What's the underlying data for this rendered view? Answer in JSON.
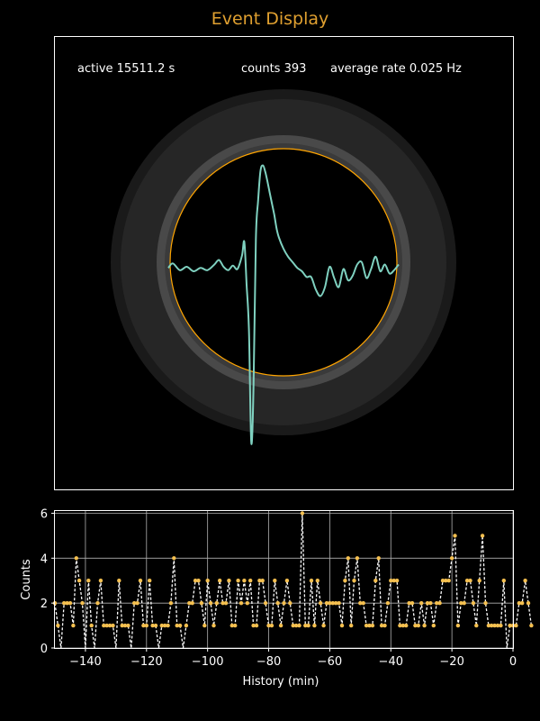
{
  "title": "Event Display",
  "stats": {
    "active": "active 15511.2 s",
    "counts": "counts 393",
    "rate": "average rate 0.025 Hz"
  },
  "colors": {
    "title": "#e0a030",
    "trace": "#7fd1c0",
    "ring": "#ffa500",
    "marker": "#f5c050",
    "line": "#ffffff"
  },
  "chart_data": [
    {
      "type": "line",
      "title": "",
      "description_role": "event waveform inside detector display",
      "xlim": [
        0,
        1
      ],
      "ylim": [
        -1,
        1
      ],
      "x": [
        0.0,
        0.02,
        0.05,
        0.08,
        0.11,
        0.14,
        0.17,
        0.2,
        0.22,
        0.24,
        0.26,
        0.28,
        0.3,
        0.32,
        0.33,
        0.34,
        0.35,
        0.36,
        0.37,
        0.38,
        0.39,
        0.4,
        0.41,
        0.42,
        0.43,
        0.44,
        0.45,
        0.46,
        0.47,
        0.48,
        0.5,
        0.52,
        0.54,
        0.56,
        0.58,
        0.6,
        0.62,
        0.64,
        0.66,
        0.68,
        0.7,
        0.72,
        0.74,
        0.76,
        0.78,
        0.8,
        0.82,
        0.84,
        0.86,
        0.88,
        0.9,
        0.92,
        0.94,
        0.96,
        0.98,
        1.0
      ],
      "y": [
        -0.05,
        -0.01,
        -0.07,
        -0.04,
        -0.08,
        -0.05,
        -0.07,
        -0.02,
        0.02,
        -0.04,
        -0.07,
        -0.03,
        -0.06,
        0.06,
        0.18,
        -0.2,
        -0.6,
        -1.6,
        -1.1,
        0.2,
        0.55,
        0.81,
        0.86,
        0.81,
        0.72,
        0.62,
        0.52,
        0.42,
        0.3,
        0.22,
        0.12,
        0.05,
        0.0,
        -0.05,
        -0.08,
        -0.13,
        -0.13,
        -0.24,
        -0.3,
        -0.22,
        -0.04,
        -0.14,
        -0.22,
        -0.06,
        -0.16,
        -0.12,
        -0.02,
        0.0,
        -0.14,
        -0.06,
        0.05,
        -0.08,
        -0.02,
        -0.1,
        -0.07,
        -0.02
      ]
    },
    {
      "type": "line",
      "title": "",
      "xlabel": "History (min)",
      "ylabel": "Counts",
      "xlim": [
        -150,
        0
      ],
      "ylim": [
        0,
        6.1
      ],
      "xticks": [
        -140,
        -120,
        -100,
        -80,
        -60,
        -40,
        -20,
        0
      ],
      "yticks": [
        0,
        2,
        4,
        6
      ],
      "grid": true,
      "bin_width_min": 1,
      "x_start": -150,
      "values": [
        2,
        1,
        0,
        2,
        2,
        2,
        1,
        4,
        3,
        2,
        0,
        3,
        1,
        0,
        2,
        3,
        1,
        1,
        1,
        1,
        0,
        3,
        1,
        1,
        1,
        0,
        2,
        2,
        3,
        1,
        1,
        3,
        1,
        1,
        0,
        1,
        1,
        1,
        2,
        4,
        1,
        1,
        0,
        1,
        2,
        2,
        3,
        3,
        2,
        1,
        3,
        2,
        1,
        2,
        3,
        2,
        2,
        3,
        1,
        1,
        3,
        2,
        3,
        2,
        3,
        1,
        1,
        3,
        3,
        2,
        1,
        1,
        3,
        2,
        1,
        2,
        3,
        2,
        1,
        1,
        1,
        6,
        1,
        1,
        3,
        1,
        3,
        2,
        1,
        2,
        2,
        2,
        2,
        2,
        1,
        3,
        4,
        1,
        3,
        4,
        2,
        2,
        1,
        1,
        1,
        3,
        4,
        1,
        1,
        2,
        3,
        3,
        3,
        1,
        1,
        1,
        2,
        2,
        1,
        1,
        2,
        1,
        2,
        2,
        1,
        2,
        2,
        3,
        3,
        3,
        4,
        5,
        1,
        2,
        2,
        3,
        3,
        2,
        1,
        3,
        5,
        2,
        1,
        1,
        1,
        1,
        1,
        3,
        0,
        1,
        1,
        1,
        2,
        2,
        3,
        2,
        1
      ]
    }
  ]
}
